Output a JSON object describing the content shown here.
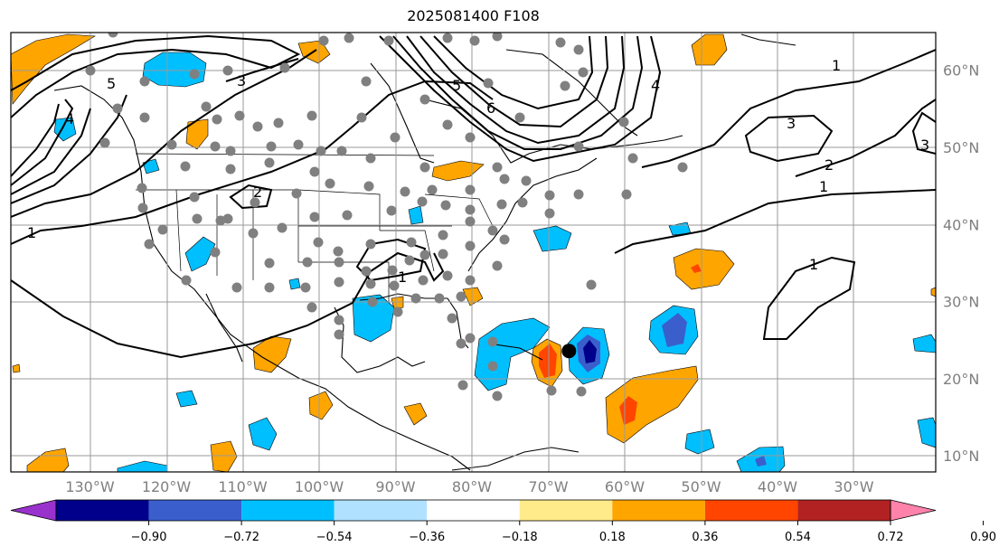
{
  "title": "2025081400 F108",
  "map": {
    "lat_labels": [
      {
        "text": "60°N",
        "lat": 60
      },
      {
        "text": "50°N",
        "lat": 50
      },
      {
        "text": "40°N",
        "lat": 40
      },
      {
        "text": "30°N",
        "lat": 30
      },
      {
        "text": "20°N",
        "lat": 20
      },
      {
        "text": "10°N",
        "lat": 10
      }
    ],
    "lon_labels": [
      {
        "text": "130°W",
        "lon": -130
      },
      {
        "text": "120°W",
        "lon": -120
      },
      {
        "text": "110°W",
        "lon": -110
      },
      {
        "text": "100°W",
        "lon": -100
      },
      {
        "text": "90°W",
        "lon": -90
      },
      {
        "text": "80°W",
        "lon": -80
      },
      {
        "text": "70°W",
        "lon": -70
      },
      {
        "text": "60°W",
        "lon": -60
      },
      {
        "text": "50°W",
        "lon": -50
      },
      {
        "text": "40°W",
        "lon": -40
      },
      {
        "text": "30°W",
        "lon": -30
      }
    ],
    "contour_labels": [
      "1",
      "2",
      "3",
      "4",
      "5",
      "6"
    ],
    "storm_marker": {
      "lon": -67.3,
      "lat": 23.6
    },
    "colors": {
      "grid": "#9a9a9a",
      "station": "#808080",
      "contour": "#000000",
      "storm": "#000000"
    }
  },
  "colorbar": {
    "ticks": [
      "−0.90",
      "−0.72",
      "−0.54",
      "−0.36",
      "−0.18",
      "0.18",
      "0.36",
      "0.54",
      "0.72",
      "0.90"
    ],
    "colors": [
      "#9932cc",
      "#00008b",
      "#3a5fcd",
      "#00bfff",
      "#b0e2ff",
      "#ffffff",
      "#ffeb8a",
      "#ffa500",
      "#ff4500",
      "#b22222",
      "#ff82ab"
    ]
  }
}
